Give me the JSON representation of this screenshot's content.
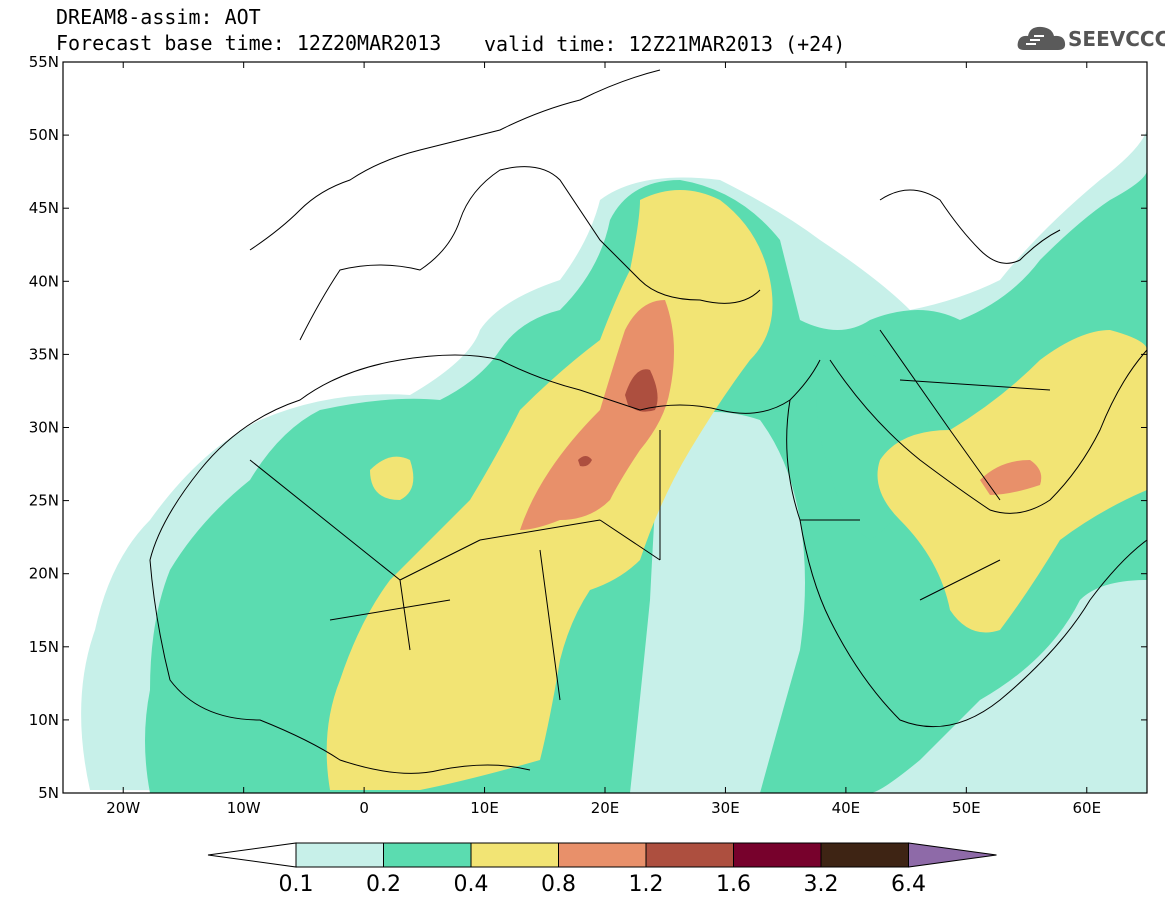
{
  "header": {
    "title_line1": "DREAM8-assim: AOT",
    "title_line2": "Forecast base time: 12Z20MAR2013",
    "valid_time": "valid time: 12Z21MAR2013 (+24)",
    "logo_text": "SEEVCCC"
  },
  "map": {
    "projection": "lat-lon",
    "lon_range": [
      -25,
      65
    ],
    "lat_range": [
      5,
      55
    ],
    "lat_ticks": [
      "5N",
      "10N",
      "15N",
      "20N",
      "25N",
      "30N",
      "35N",
      "40N",
      "45N",
      "50N",
      "55N"
    ],
    "lon_ticks": [
      "20W",
      "10W",
      "0",
      "10E",
      "20E",
      "30E",
      "40E",
      "50E",
      "60E"
    ],
    "field": "Aerosol Optical Thickness (AOT)"
  },
  "colorbar": {
    "labels": [
      "0.1",
      "0.2",
      "0.4",
      "0.8",
      "1.2",
      "1.6",
      "3.2",
      "6.4"
    ],
    "colors": {
      "below": "#ffffff",
      "c1": "#c7f0e9",
      "c2": "#5bdcb0",
      "c3": "#f2e474",
      "c4": "#e8906a",
      "c5": "#ad4f3f",
      "c6": "#77012c",
      "c7": "#3e2414",
      "above": "#8e6aa8"
    }
  },
  "colors": {
    "land_line": "#000000",
    "frame": "#000000"
  }
}
